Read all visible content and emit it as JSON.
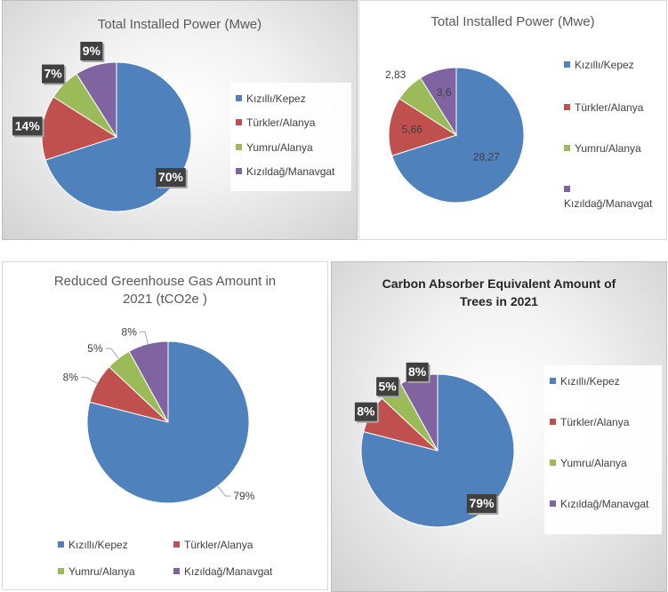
{
  "chart_data": [
    {
      "type": "pie",
      "title": "Total Installed Power (Mwe)",
      "categories": [
        "Kızıllı/Kepez",
        "Türkler/Alanya",
        "Yumru/Alanya",
        "Kızıldağ/Manavgat"
      ],
      "values": [
        70,
        14,
        7,
        9
      ],
      "data_labels": [
        "70%",
        "14%",
        "7%",
        "9%"
      ],
      "colors": [
        "#4f81bd",
        "#c0504d",
        "#9bbb59",
        "#8064a2"
      ],
      "legend": "right"
    },
    {
      "type": "pie",
      "title": "Total Installed Power (Mwe)",
      "categories": [
        "Kızıllı/Kepez",
        "Türkler/Alanya",
        "Yumru/Alanya",
        "Kızıldağ/Manavgat"
      ],
      "values": [
        28.27,
        5.66,
        2.83,
        3.6
      ],
      "data_labels": [
        "28,27",
        "5,66",
        "2,83",
        "3,6"
      ],
      "colors": [
        "#4f81bd",
        "#c0504d",
        "#9bbb59",
        "#8064a2"
      ],
      "legend": "right"
    },
    {
      "type": "pie",
      "title": "Reduced Greenhouse Gas Amount in 2021 (tCO2e )",
      "categories": [
        "Kızıllı/Kepez",
        "Türkler/Alanya",
        "Yumru/Alanya",
        "Kızıldağ/Manavgat"
      ],
      "values": [
        79,
        8,
        5,
        8
      ],
      "data_labels": [
        "79%",
        "8%",
        "5%",
        "8%"
      ],
      "colors": [
        "#4f81bd",
        "#c0504d",
        "#9bbb59",
        "#8064a2"
      ],
      "legend": "bottom"
    },
    {
      "type": "pie",
      "title": "Carbon Absorber Equivalent Amount of Trees in 2021",
      "categories": [
        "Kızıllı/Kepez",
        "Türkler/Alanya",
        "Yumru/Alanya",
        "Kızıldağ/Manavgat"
      ],
      "values": [
        79,
        8,
        5,
        8
      ],
      "data_labels": [
        "79%",
        "8%",
        "5%",
        "8%"
      ],
      "colors": [
        "#4f81bd",
        "#c0504d",
        "#9bbb59",
        "#8064a2"
      ],
      "legend": "right"
    }
  ]
}
